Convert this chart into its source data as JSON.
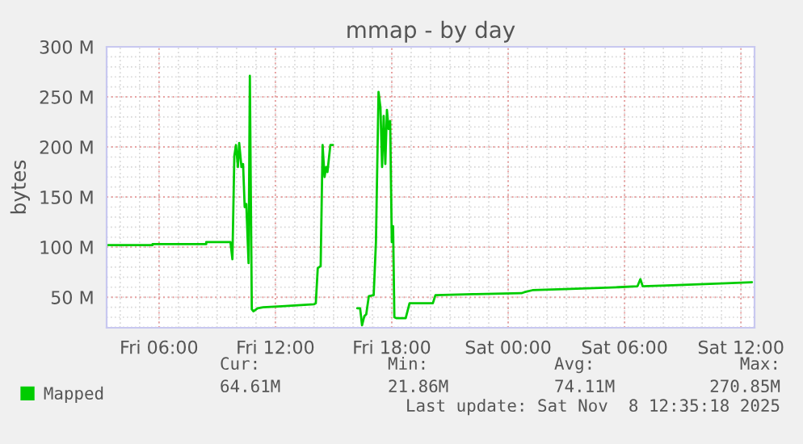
{
  "chart_data": {
    "type": "line",
    "title": "mmap - by day",
    "ylabel": "bytes",
    "x": [
      "2025-11-07T03:19",
      "2025-11-07T05:40",
      "2025-11-07T05:40",
      "2025-11-07T08:26",
      "2025-11-07T08:26",
      "2025-11-07T09:41",
      "2025-11-07T09:47",
      "2025-11-07T09:53",
      "2025-11-07T09:58",
      "2025-11-07T10:04",
      "2025-11-07T10:08",
      "2025-11-07T10:15",
      "2025-11-07T10:20",
      "2025-11-07T10:25",
      "2025-11-07T10:30",
      "2025-11-07T10:37",
      "2025-11-07T10:41",
      "2025-11-07T10:47",
      "2025-11-07T10:52",
      "2025-11-07T11:05",
      "2025-11-07T11:22",
      "2025-11-07T12:20",
      "2025-11-07T14:00",
      "2025-11-07T14:05",
      "2025-11-07T14:11",
      "2025-11-07T14:20",
      "2025-11-07T14:26",
      "2025-11-07T14:32",
      "2025-11-07T14:37",
      "2025-11-07T14:41",
      "2025-11-07T14:50",
      "2025-11-07T14:58",
      "2025-11-07T15:36",
      "2025-11-07T16:13",
      "2025-11-07T16:22",
      "2025-11-07T16:28",
      "2025-11-07T16:35",
      "2025-11-07T16:41",
      "2025-11-07T16:49",
      "2025-11-07T17:04",
      "2025-11-07T17:11",
      "2025-11-07T17:19",
      "2025-11-07T17:25",
      "2025-11-07T17:30",
      "2025-11-07T17:35",
      "2025-11-07T17:40",
      "2025-11-07T17:45",
      "2025-11-07T17:50",
      "2025-11-07T17:55",
      "2025-11-07T18:00",
      "2025-11-07T18:04",
      "2025-11-07T18:08",
      "2025-11-07T18:15",
      "2025-11-07T18:43",
      "2025-11-07T18:55",
      "2025-11-07T20:07",
      "2025-11-07T20:15",
      "2025-11-07T22:11",
      "2025-11-07T22:20",
      "2025-11-08T00:41",
      "2025-11-08T00:50",
      "2025-11-08T01:15",
      "2025-11-08T02:55",
      "2025-11-08T05:41",
      "2025-11-08T06:40",
      "2025-11-08T06:49",
      "2025-11-08T06:56",
      "2025-11-08T08:28",
      "2025-11-08T11:15",
      "2025-11-08T12:34"
    ],
    "series": [
      {
        "name": "Mapped",
        "color": "#00cc00",
        "values": [
          102,
          102,
          103,
          103,
          105,
          105,
          88,
          191,
          202,
          180,
          204,
          180,
          183,
          140,
          143,
          84,
          271,
          38,
          36,
          39,
          40,
          41,
          43,
          44,
          79,
          81,
          202,
          170,
          180,
          175,
          202,
          202,
          null,
          39,
          39,
          22,
          31,
          33,
          51,
          52,
          105,
          255,
          239,
          180,
          231,
          183,
          237,
          218,
          226,
          105,
          121,
          30,
          29,
          29,
          44,
          44,
          52,
          53,
          53,
          54,
          55,
          57,
          58,
          60,
          61,
          68,
          61,
          62,
          64,
          65
        ]
      }
    ],
    "xlim": [
      "2025-11-07T03:18",
      "2025-11-08T12:42"
    ],
    "ylim": [
      19.5,
      300
    ],
    "xticks": [
      {
        "value": "2025-11-07T06:00",
        "label": "Fri 06:00"
      },
      {
        "value": "2025-11-07T12:00",
        "label": "Fri 12:00"
      },
      {
        "value": "2025-11-07T18:00",
        "label": "Fri 18:00"
      },
      {
        "value": "2025-11-08T00:00",
        "label": "Sat 00:00"
      },
      {
        "value": "2025-11-08T06:00",
        "label": "Sat 06:00"
      },
      {
        "value": "2025-11-08T12:00",
        "label": "Sat 12:00"
      }
    ],
    "yticks": [
      {
        "value": 50,
        "label": "50 M"
      },
      {
        "value": 100,
        "label": "100 M"
      },
      {
        "value": 150,
        "label": "150 M"
      },
      {
        "value": 200,
        "label": "200 M"
      },
      {
        "value": 250,
        "label": "250 M"
      },
      {
        "value": 300,
        "label": "300 M"
      }
    ],
    "grid": true,
    "legend": "bottom left",
    "annotations": [
      "Cur:",
      "64.61M",
      "Min:",
      "21.86M",
      "Avg:",
      "74.11M",
      "Max:",
      "270.85M",
      "Last update: Sat Nov  8 12:35:18 2025"
    ]
  }
}
